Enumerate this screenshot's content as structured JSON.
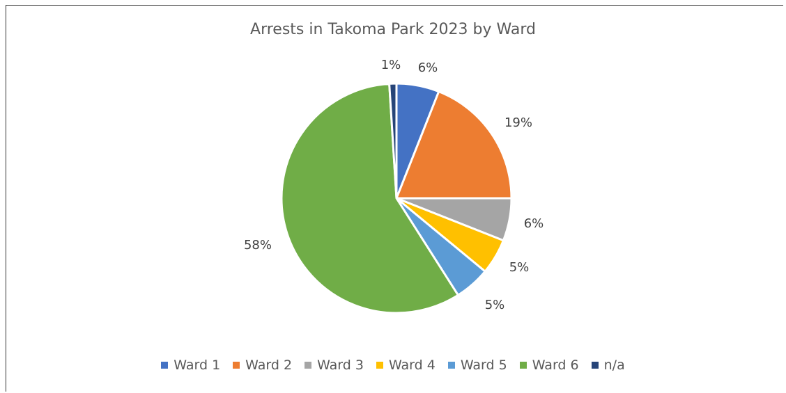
{
  "chart_data": {
    "type": "pie",
    "title": "Arrests in Takoma Park 2023 by Ward",
    "categories": [
      "Ward 1",
      "Ward 2",
      "Ward 3",
      "Ward 4",
      "Ward 5",
      "Ward 6",
      "n/a"
    ],
    "values": [
      6,
      19,
      6,
      5,
      5,
      58,
      1
    ],
    "labels": [
      "6%",
      "19%",
      "6%",
      "5%",
      "5%",
      "58%",
      "1%"
    ],
    "colors": [
      "#4472C4",
      "#ED7D31",
      "#A5A5A5",
      "#FFC000",
      "#5B9BD5",
      "#70AD47",
      "#264478"
    ],
    "legend_position": "bottom"
  }
}
